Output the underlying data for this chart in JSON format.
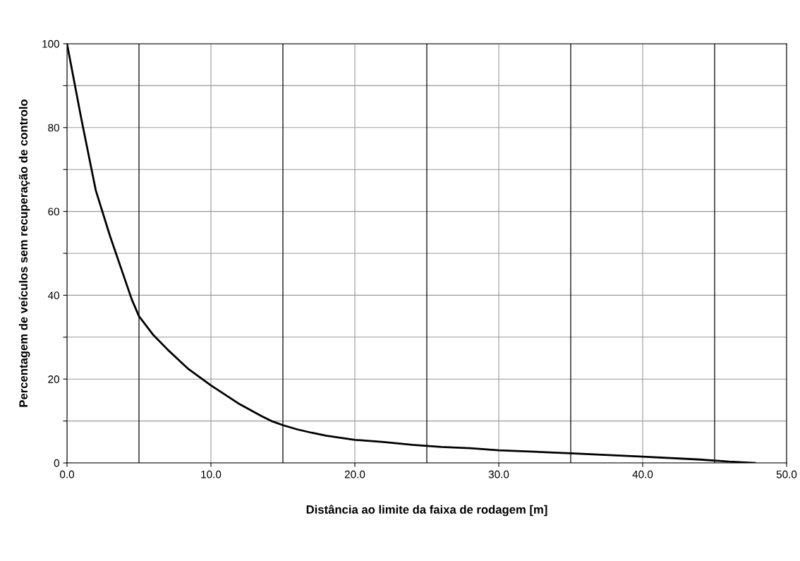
{
  "chart_data": {
    "type": "line",
    "xlabel": "Distância ao limite da faixa de rodagem [m]",
    "ylabel": "Percentagem de veículos sem recuperação de controlo",
    "x": [
      0,
      1,
      2,
      3,
      4,
      4.5,
      5,
      6,
      7,
      8.4,
      10,
      12,
      13.5,
      14.2,
      15,
      16,
      17,
      18,
      20,
      22,
      24,
      26,
      28,
      30,
      33,
      35,
      40,
      44,
      46,
      47.8
    ],
    "series": [
      {
        "color": "#000000",
        "values": [
          100,
          82,
          65,
          54,
          44,
          39,
          35,
          30.5,
          27,
          22.5,
          18.5,
          14,
          11.2,
          10,
          9,
          8,
          7.2,
          6.5,
          5.5,
          5,
          4.3,
          3.8,
          3.5,
          3,
          2.6,
          2.3,
          1.5,
          0.8,
          0.3,
          0
        ]
      }
    ],
    "xlim": [
      0,
      50
    ],
    "ylim": [
      0,
      100
    ],
    "xticks": [
      {
        "value": 0,
        "label": "0.0"
      },
      {
        "value": 10,
        "label": "10.0"
      },
      {
        "value": 20,
        "label": "20.0"
      },
      {
        "value": 30,
        "label": "30.0"
      },
      {
        "value": 40,
        "label": "40.0"
      },
      {
        "value": 50,
        "label": "50.0"
      }
    ],
    "yticks": [
      0,
      {
        "value": 10,
        "label": null
      },
      20,
      {
        "value": 30,
        "label": null
      },
      40,
      {
        "value": 50,
        "label": null
      },
      60,
      {
        "value": 70,
        "label": null
      },
      80,
      {
        "value": 90,
        "label": null
      },
      100
    ],
    "ref_lines": [
      {
        "axis": "x",
        "value": 5,
        "color": "#000000"
      },
      {
        "axis": "x",
        "value": 15,
        "color": "#000000"
      },
      {
        "axis": "x",
        "value": 25,
        "color": "#000000"
      },
      {
        "axis": "x",
        "value": 35,
        "color": "#000000"
      },
      {
        "axis": "x",
        "value": 45,
        "color": "#000000"
      }
    ],
    "grid": true,
    "marker": "none",
    "line_style": "solid",
    "legend": false
  }
}
